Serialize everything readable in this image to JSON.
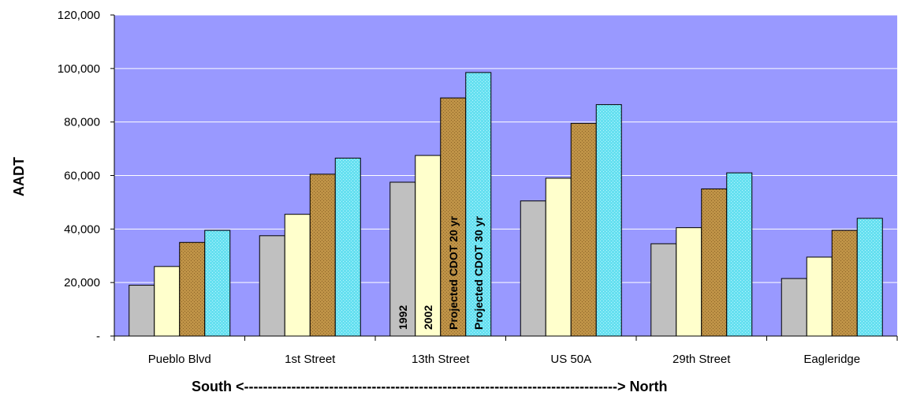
{
  "chart_data": {
    "type": "bar",
    "title": "",
    "xlabel": "South <-------------------------------------------------------------------------------> North",
    "ylabel": "AADT",
    "ylim": [
      0,
      120000
    ],
    "ytick_values": [
      0,
      20000,
      40000,
      60000,
      80000,
      100000,
      120000
    ],
    "ytick_labels": [
      "-",
      "20,000",
      "40,000",
      "60,000",
      "80,000",
      "100,000",
      "120,000"
    ],
    "categories": [
      "Pueblo Blvd",
      "1st Street",
      "13th Street",
      "US 50A",
      "29th Street",
      "Eagleridge"
    ],
    "series": [
      {
        "name": "1992",
        "values": [
          19000,
          37500,
          57500,
          50500,
          34500,
          21500
        ]
      },
      {
        "name": "2002",
        "values": [
          26000,
          45500,
          67500,
          59000,
          40500,
          29500
        ]
      },
      {
        "name": "Projected CDOT 20 yr",
        "values": [
          35000,
          60500,
          89000,
          79500,
          55000,
          39500
        ]
      },
      {
        "name": "Projected CDOT 30 yr",
        "values": [
          39500,
          66500,
          98500,
          86500,
          61000,
          44000
        ]
      }
    ],
    "series_label_category": "13th Street",
    "grid": true,
    "colors": {
      "plot_background": "#9999FF",
      "gridline": "#FFFFFF",
      "series": [
        "#C0C0C0",
        "#FFFFCC",
        "#BF9347",
        "#66E0F0"
      ]
    }
  }
}
